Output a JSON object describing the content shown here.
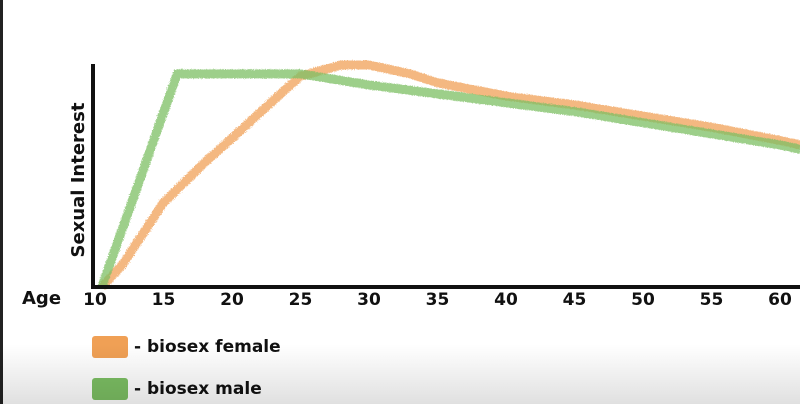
{
  "chart_data": {
    "type": "line",
    "xlabel": "Age",
    "ylabel": "Sexual Interest",
    "x_ticks": [
      "10",
      "15",
      "20",
      "25",
      "30",
      "35",
      "40",
      "45",
      "50",
      "55",
      "60"
    ],
    "xlim": [
      10,
      61.5
    ],
    "ylim": [
      0,
      100
    ],
    "grid": false,
    "legend_position": "bottom-left",
    "series": [
      {
        "name": "- biosex female",
        "color": "#f0a055",
        "points": [
          [
            10.5,
            0
          ],
          [
            12,
            10
          ],
          [
            15,
            38
          ],
          [
            18,
            56
          ],
          [
            20,
            67
          ],
          [
            23,
            84
          ],
          [
            25,
            95
          ],
          [
            28,
            100
          ],
          [
            30,
            100
          ],
          [
            33,
            96
          ],
          [
            35,
            92
          ],
          [
            40,
            86
          ],
          [
            45,
            82
          ],
          [
            50,
            77
          ],
          [
            55,
            72
          ],
          [
            60,
            66
          ],
          [
            61.5,
            64
          ]
        ]
      },
      {
        "name": "- biosex male",
        "color": "#7cbf63",
        "points": [
          [
            10.5,
            0
          ],
          [
            16,
            96
          ],
          [
            20,
            96
          ],
          [
            25,
            96
          ],
          [
            30,
            91
          ],
          [
            35,
            87
          ],
          [
            40,
            83
          ],
          [
            45,
            79
          ],
          [
            50,
            74
          ],
          [
            55,
            69
          ],
          [
            60,
            64
          ],
          [
            61.5,
            62
          ]
        ]
      }
    ]
  }
}
